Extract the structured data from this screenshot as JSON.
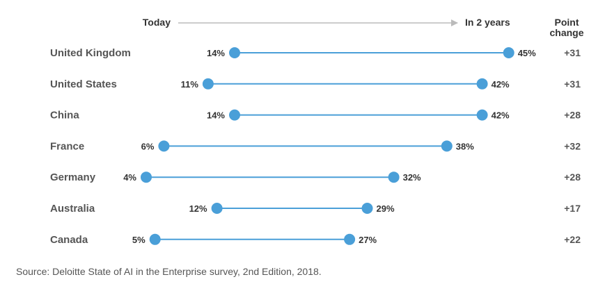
{
  "header": {
    "today_label": "Today",
    "future_label": "In 2 years",
    "change_label_line1": "Point",
    "change_label_line2": "change"
  },
  "source": "Source: Deloitte State of AI in the Enterprise survey, 2nd Edition, 2018.",
  "colors": {
    "line": "#4a9fd8",
    "dot": "#4a9fd8",
    "arrow": "#bbbbbb"
  },
  "chart_data": {
    "type": "dumbbell",
    "title": "",
    "x_axis": {
      "min": 0,
      "max": 50,
      "tick_labels": []
    },
    "series": [
      {
        "name": "Today"
      },
      {
        "name": "In 2 years"
      }
    ],
    "rows": [
      {
        "country": "United Kingdom",
        "today": 14,
        "today_label": "14%",
        "future": 45,
        "future_label": "45%",
        "change": "+31"
      },
      {
        "country": "United States",
        "today": 11,
        "today_label": "11%",
        "future": 42,
        "future_label": "42%",
        "change": "+31"
      },
      {
        "country": "China",
        "today": 14,
        "today_label": "14%",
        "future": 42,
        "future_label": "42%",
        "change": "+28"
      },
      {
        "country": "France",
        "today": 6,
        "today_label": "6%",
        "future": 38,
        "future_label": "38%",
        "change": "+32"
      },
      {
        "country": "Germany",
        "today": 4,
        "today_label": "4%",
        "future": 32,
        "future_label": "32%",
        "change": "+28"
      },
      {
        "country": "Australia",
        "today": 12,
        "today_label": "12%",
        "future": 29,
        "future_label": "29%",
        "change": "+17"
      },
      {
        "country": "Canada",
        "today": 5,
        "today_label": "5%",
        "future": 27,
        "future_label": "27%",
        "change": "+22"
      }
    ]
  }
}
